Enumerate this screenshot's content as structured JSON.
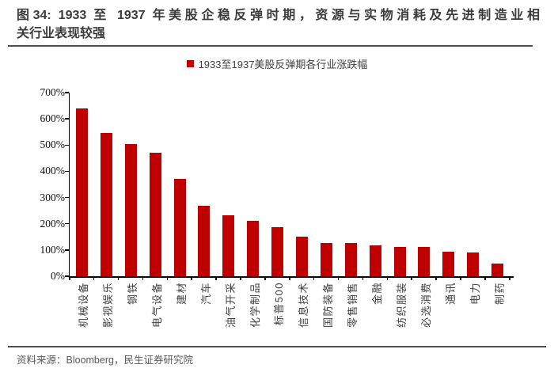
{
  "title": {
    "line1": "图34: 1933 至 1937 年美股企稳反弹时期，资源与实物消耗及先进制造业相",
    "line2": "关行业表现较强",
    "full": "图34: 1933 至 1937 年美股企稳反弹时期，资源与实物消耗及先进制造业相关行业表现较强"
  },
  "legend": {
    "label": "1933至1937美股反弹期各行业涨跌幅",
    "swatch_color": "#c00000"
  },
  "source": "资料来源：Bloomberg，民生证券研究院",
  "colors": {
    "bar": "#c00000",
    "title_text": "#3b3b3b",
    "divider": "#4f4f4f",
    "axis": "#000000",
    "source_text": "#595959"
  },
  "chart_data": {
    "type": "bar",
    "title": "1933至1937美股反弹期各行业涨跌幅",
    "categories": [
      "机械设备",
      "影视娱乐",
      "钢铁",
      "电气设备",
      "建材",
      "汽车",
      "油气开采",
      "化学制品",
      "标普500",
      "信息技术",
      "国防装备",
      "零售销售",
      "金融",
      "纺织服装",
      "必选消费",
      "通讯",
      "电力",
      "制药"
    ],
    "values": [
      640,
      545,
      505,
      470,
      370,
      268,
      232,
      210,
      186,
      150,
      127,
      126,
      118,
      113,
      112,
      95,
      90,
      48
    ],
    "unit": "%",
    "xlabel": "",
    "ylabel": "",
    "ylim": [
      0,
      700
    ],
    "ytick_step": 100,
    "ytick_labels": [
      "0%",
      "100%",
      "200%",
      "300%",
      "400%",
      "500%",
      "600%",
      "700%"
    ],
    "grid": false,
    "legend_position": "top",
    "bar_color": "#c00000"
  }
}
